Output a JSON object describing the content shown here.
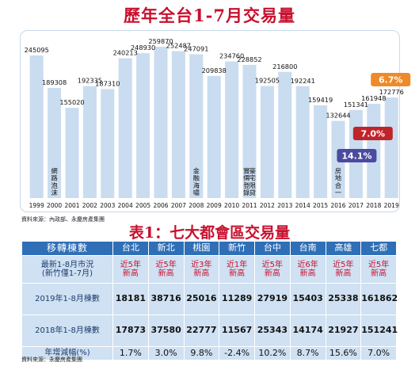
{
  "title": "歷年全台1-7月交易量",
  "chart_data": {
    "type": "bar",
    "title": "歷年全台1-7月交易量",
    "categories": [
      "1999",
      "2000",
      "2001",
      "2002",
      "2003",
      "2004",
      "2005",
      "2006",
      "2007",
      "2008",
      "2009",
      "2010",
      "2011",
      "2012",
      "2013",
      "2014",
      "2015",
      "2016",
      "2017",
      "2018",
      "2019"
    ],
    "values": [
      245095,
      189308,
      155020,
      192335,
      187310,
      240213,
      248930,
      259870,
      252487,
      247091,
      209838,
      234760,
      228852,
      192505,
      216800,
      192241,
      159419,
      132644,
      151341,
      161948,
      172776
    ],
    "ylim": [
      0,
      275000
    ],
    "bar_color": "#c9dcf0",
    "annotations": [
      {
        "text": "網路泡沫",
        "x": "2000"
      },
      {
        "text": "金融海嘯",
        "x": "2008"
      },
      {
        "text": "豪宅限貸、實價登錄",
        "x": "2011"
      },
      {
        "text": "房地合一",
        "x": "2016"
      }
    ],
    "badges": [
      {
        "text": "14.1%",
        "x": "2017",
        "color": "#4b4a9e"
      },
      {
        "text": "7.0%",
        "x": "2018",
        "color": "#c0242b"
      },
      {
        "text": "6.7%",
        "x": "2019",
        "color": "#ee8a2a"
      }
    ]
  },
  "source_chart": "資料來源：內政部、永慶房產集團",
  "table": {
    "title": "表1：七大都會區交易量",
    "corner": "移轉棟數",
    "columns": [
      "台北",
      "新北",
      "桃園",
      "新竹",
      "台中",
      "台南",
      "高雄",
      "七都"
    ],
    "rows": [
      {
        "label": [
          "最新1-8月市況",
          "(新竹僅1-7月)"
        ],
        "kind": "record",
        "values": [
          [
            "近5年",
            "新高"
          ],
          [
            "近5年",
            "新高"
          ],
          [
            "近3年",
            "新高"
          ],
          [
            "近1年",
            "新高"
          ],
          [
            "近5年",
            "新高"
          ],
          [
            "近6年",
            "新高"
          ],
          [
            "近5年",
            "新高"
          ],
          [
            "近5年",
            "新高"
          ]
        ]
      },
      {
        "label": [
          "2019年1-8月棟數"
        ],
        "kind": "val",
        "values": [
          "18181",
          "38716",
          "25016",
          "11289",
          "27919",
          "15403",
          "25338",
          "161862"
        ]
      },
      {
        "label": [
          "2018年1-8月棟數"
        ],
        "kind": "val",
        "values": [
          "17873",
          "37580",
          "22777",
          "11567",
          "25343",
          "14174",
          "21927",
          "151241"
        ]
      },
      {
        "label": [
          "年增減幅(%)"
        ],
        "kind": "pct",
        "values": [
          "1.7%",
          "3.0%",
          "9.8%",
          "-2.4%",
          "10.2%",
          "8.7%",
          "15.6%",
          "7.0%"
        ]
      }
    ]
  },
  "source_table": "資料來源：永慶房產集團"
}
